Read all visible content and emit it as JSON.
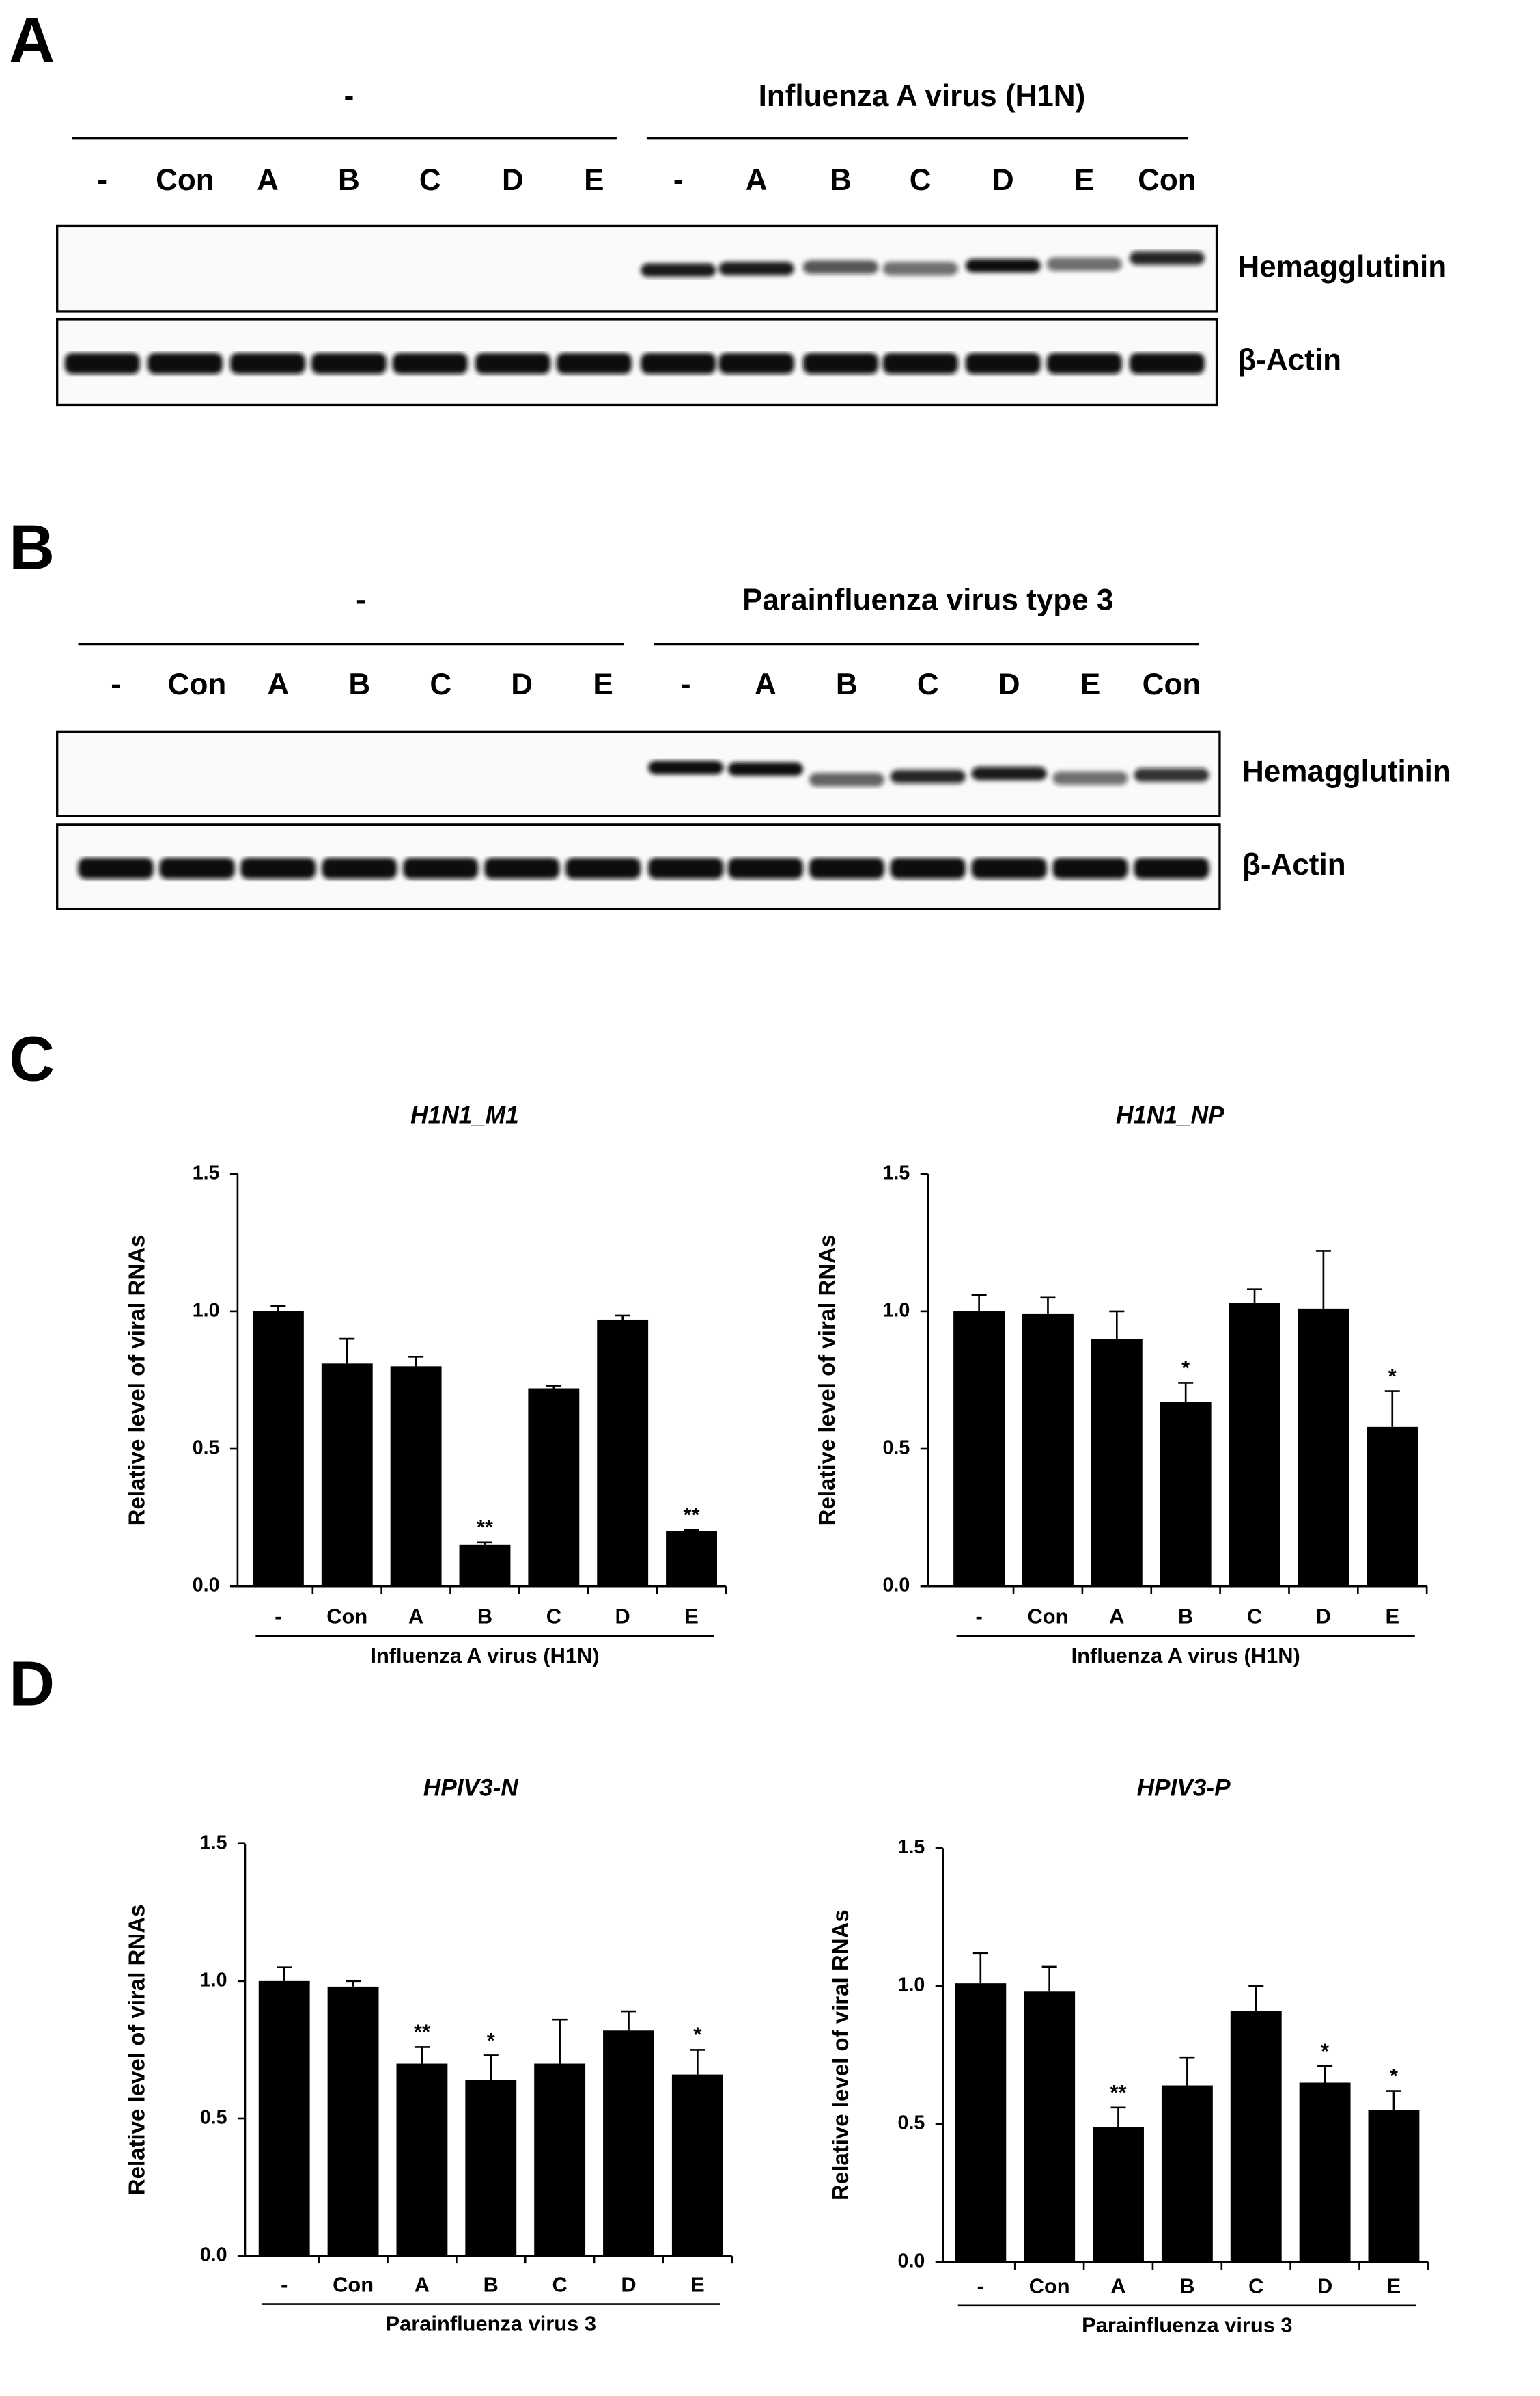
{
  "panels": {
    "A": {
      "letter": "A",
      "group_labels": [
        "-",
        "Influenza A virus (H1N)"
      ],
      "lanes": [
        "-",
        "Con",
        "A",
        "B",
        "C",
        "D",
        "E",
        "-",
        "A",
        "B",
        "C",
        "D",
        "E",
        "Con"
      ],
      "rows": [
        "Hemagglutinin",
        "β-Actin"
      ]
    },
    "B": {
      "letter": "B",
      "group_labels": [
        "-",
        "Parainfluenza virus type 3"
      ],
      "lanes": [
        "-",
        "Con",
        "A",
        "B",
        "C",
        "D",
        "E",
        "-",
        "A",
        "B",
        "C",
        "D",
        "E",
        "Con"
      ],
      "rows": [
        "Hemagglutinin",
        "β-Actin"
      ]
    },
    "C": {
      "letter": "C"
    },
    "D": {
      "letter": "D"
    }
  },
  "chart_data": [
    {
      "type": "bar",
      "title": "H1N1_M1",
      "y_label": "Relative level of viral RNAs",
      "x_label": "Influenza A virus (H1N)",
      "categories": [
        "-",
        "Con",
        "A",
        "B",
        "C",
        "D",
        "E"
      ],
      "values": [
        1.0,
        0.81,
        0.8,
        0.15,
        0.72,
        0.97,
        0.2
      ],
      "errors": [
        0.02,
        0.09,
        0.035,
        0.01,
        0.01,
        0.015,
        0.005
      ],
      "annotations": [
        null,
        null,
        null,
        "**",
        null,
        null,
        "**"
      ],
      "color": "#000000",
      "ylim": [
        0,
        1.5
      ],
      "yticks": [
        {
          "value": 0,
          "label": "0.0"
        },
        {
          "value": 0.5,
          "label": "0.5"
        },
        {
          "value": 1,
          "label": "1.0"
        },
        {
          "value": 1.5,
          "label": "1.5"
        }
      ]
    },
    {
      "type": "bar",
      "title": "H1N1_NP",
      "y_label": "Relative level of viral RNAs",
      "x_label": "Influenza A virus (H1N)",
      "categories": [
        "-",
        "Con",
        "A",
        "B",
        "C",
        "D",
        "E"
      ],
      "values": [
        1.0,
        0.99,
        0.9,
        0.67,
        1.03,
        1.01,
        0.58
      ],
      "errors": [
        0.06,
        0.06,
        0.1,
        0.07,
        0.05,
        0.21,
        0.13
      ],
      "annotations": [
        null,
        null,
        null,
        "*",
        null,
        null,
        "*"
      ],
      "color": "#000000",
      "ylim": [
        0,
        1.5
      ],
      "yticks": [
        {
          "value": 0,
          "label": "0.0"
        },
        {
          "value": 0.5,
          "label": "0.5"
        },
        {
          "value": 1,
          "label": "1.0"
        },
        {
          "value": 1.5,
          "label": "1.5"
        }
      ]
    },
    {
      "type": "bar",
      "title": "HPIV3-N",
      "y_label": "Relative level of viral RNAs",
      "x_label": "Parainfluenza virus 3",
      "categories": [
        "-",
        "Con",
        "A",
        "B",
        "C",
        "D",
        "E"
      ],
      "values": [
        1.0,
        0.98,
        0.7,
        0.64,
        0.7,
        0.82,
        0.66
      ],
      "errors": [
        0.05,
        0.02,
        0.06,
        0.09,
        0.16,
        0.07,
        0.09
      ],
      "annotations": [
        null,
        null,
        "**",
        "*",
        null,
        null,
        "*"
      ],
      "color": "#000000",
      "ylim": [
        0,
        1.5
      ],
      "yticks": [
        {
          "value": 0,
          "label": "0.0"
        },
        {
          "value": 0.5,
          "label": "0.5"
        },
        {
          "value": 1,
          "label": "1.0"
        },
        {
          "value": 1.5,
          "label": "1.5"
        }
      ]
    },
    {
      "type": "bar",
      "title": "HPIV3-P",
      "y_label": "Relative level of viral RNAs",
      "x_label": "Parainfluenza virus 3",
      "categories": [
        "-",
        "Con",
        "A",
        "B",
        "C",
        "D",
        "E"
      ],
      "values": [
        1.01,
        0.98,
        0.49,
        0.64,
        0.91,
        0.65,
        0.55
      ],
      "errors": [
        0.11,
        0.09,
        0.07,
        0.1,
        0.09,
        0.06,
        0.07
      ],
      "annotations": [
        null,
        null,
        "**",
        null,
        null,
        "*",
        "*"
      ],
      "color": "#000000",
      "ylim": [
        0,
        1.5
      ],
      "yticks": [
        {
          "value": 0,
          "label": "0.0"
        },
        {
          "value": 0.5,
          "label": "0.5"
        },
        {
          "value": 1,
          "label": "1.0"
        },
        {
          "value": 1.5,
          "label": "1.5"
        }
      ]
    }
  ]
}
